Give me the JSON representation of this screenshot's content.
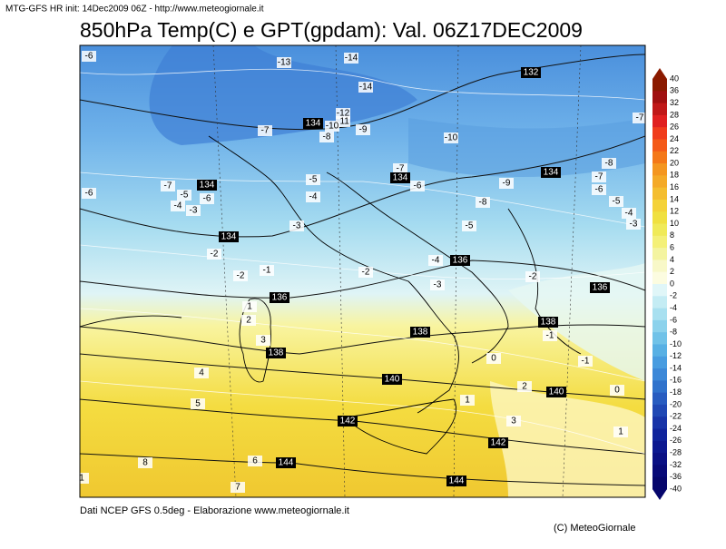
{
  "header": {
    "info": "MTG-GFS HR init: 14Dec2009 06Z - http://www.meteogiornale.it",
    "title": "850hPa Temp(C) e GPT(gpdam): Val. 06Z17DEC2009"
  },
  "footer": {
    "source": "Dati NCEP GFS 0.5deg - Elaborazione www.meteogiornale.it",
    "copyright": "(C) MeteoGiornale"
  },
  "colorbar": {
    "labels": [
      40,
      36,
      32,
      28,
      26,
      24,
      22,
      20,
      18,
      16,
      14,
      12,
      10,
      8,
      6,
      4,
      2,
      0,
      -2,
      -4,
      -6,
      -8,
      -10,
      -12,
      -14,
      -16,
      -18,
      -20,
      -22,
      -24,
      -26,
      -28,
      -32,
      -36,
      -40
    ],
    "colors": [
      "#8b1a00",
      "#a01010",
      "#c01818",
      "#e02020",
      "#f03c1c",
      "#f45a18",
      "#f47818",
      "#f49620",
      "#f4aa28",
      "#f4be30",
      "#f4d238",
      "#f0e040",
      "#f0ea58",
      "#f4f078",
      "#f4f4a0",
      "#f8f8c8",
      "#fcfce0",
      "#e0f6f8",
      "#c4ecf4",
      "#a8e0f0",
      "#8cd2ec",
      "#70c2e8",
      "#58b0e4",
      "#489ce0",
      "#3c88d8",
      "#3072cc",
      "#285cc0",
      "#2048b4",
      "#1834a8",
      "#10249c",
      "#0c1890",
      "#0a1084",
      "#080a78",
      "#06066c"
    ]
  },
  "map_labels": {
    "temperature": [
      "-6",
      "-13",
      "-14",
      "-14",
      "-12",
      "-11",
      "-10",
      "-7",
      "-8",
      "-9",
      "-10",
      "-7",
      "-8",
      "-7",
      "-6",
      "-5",
      "-4",
      "-3",
      "-9",
      "-7",
      "-6",
      "-5",
      "-4",
      "-8",
      "-5",
      "-3",
      "-7",
      "-5",
      "-6",
      "-4",
      "-3",
      "-6",
      "-2",
      "-2",
      "-1",
      "-2",
      "-4",
      "-3",
      "-2",
      "1",
      "2",
      "3",
      "4",
      "5",
      "0",
      "-1",
      "-1",
      "1",
      "2",
      "3",
      "1",
      "0",
      "8",
      "6",
      "7",
      "1"
    ],
    "geopotential": [
      "132",
      "134",
      "134",
      "134",
      "134",
      "134",
      "136",
      "136",
      "136",
      "138",
      "138",
      "138",
      "140",
      "140",
      "142",
      "142",
      "144",
      "144"
    ]
  }
}
